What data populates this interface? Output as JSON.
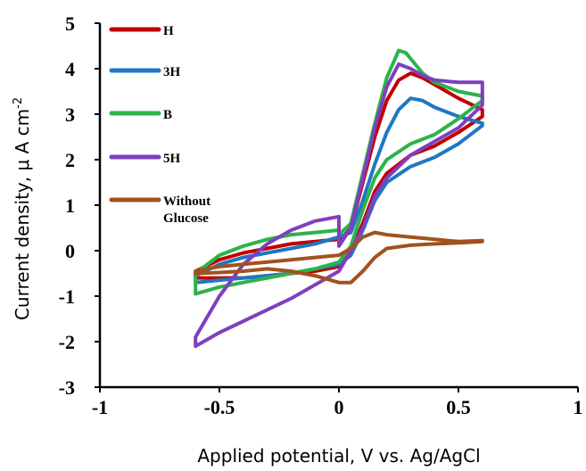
{
  "chart_data": {
    "type": "line",
    "xlabel": "Applied potential, V vs. Ag/AgCl",
    "ylabel_main": "Current density, μ A cm",
    "ylabel_sup": "-2",
    "xlim": [
      -1,
      1
    ],
    "ylim": [
      -3,
      5
    ],
    "x_ticks": [
      -1,
      -0.5,
      0,
      0.5,
      1
    ],
    "x_tick_labels": [
      "-1",
      "-0.5",
      "0",
      "0.5",
      "1"
    ],
    "y_ticks": [
      -3,
      -2,
      -1,
      0,
      1,
      2,
      3,
      4,
      5
    ],
    "y_tick_labels": [
      "-3",
      "-2",
      "-1",
      "0",
      "1",
      "2",
      "3",
      "4",
      "5"
    ],
    "grid": false,
    "legend_position": "top-left",
    "series": [
      {
        "name": "H",
        "color": "#c00000",
        "legend_lines": [
          "H"
        ],
        "points": [
          [
            0,
            0.2
          ],
          [
            0.05,
            0.5
          ],
          [
            0.1,
            1.5
          ],
          [
            0.15,
            2.5
          ],
          [
            0.2,
            3.3
          ],
          [
            0.25,
            3.75
          ],
          [
            0.3,
            3.9
          ],
          [
            0.35,
            3.8
          ],
          [
            0.4,
            3.65
          ],
          [
            0.5,
            3.35
          ],
          [
            0.6,
            3.1
          ],
          [
            0.6,
            2.95
          ],
          [
            0.5,
            2.6
          ],
          [
            0.4,
            2.3
          ],
          [
            0.3,
            2.1
          ],
          [
            0.2,
            1.7
          ],
          [
            0.15,
            1.3
          ],
          [
            0.1,
            0.6
          ],
          [
            0.05,
            0
          ],
          [
            0,
            -0.35
          ],
          [
            -0.1,
            -0.45
          ],
          [
            -0.2,
            -0.5
          ],
          [
            -0.3,
            -0.55
          ],
          [
            -0.4,
            -0.6
          ],
          [
            -0.5,
            -0.6
          ],
          [
            -0.6,
            -0.6
          ],
          [
            -0.6,
            -0.45
          ],
          [
            -0.5,
            -0.2
          ],
          [
            -0.4,
            -0.05
          ],
          [
            -0.3,
            0.05
          ],
          [
            -0.2,
            0.15
          ],
          [
            -0.1,
            0.2
          ],
          [
            0,
            0.25
          ]
        ]
      },
      {
        "name": "3H",
        "color": "#1f77c4",
        "legend_lines": [
          "3H"
        ],
        "points": [
          [
            0,
            0.3
          ],
          [
            0.05,
            0.4
          ],
          [
            0.1,
            1.1
          ],
          [
            0.15,
            1.9
          ],
          [
            0.2,
            2.6
          ],
          [
            0.25,
            3.1
          ],
          [
            0.3,
            3.35
          ],
          [
            0.35,
            3.3
          ],
          [
            0.4,
            3.15
          ],
          [
            0.5,
            2.95
          ],
          [
            0.6,
            2.8
          ],
          [
            0.6,
            2.75
          ],
          [
            0.5,
            2.35
          ],
          [
            0.4,
            2.05
          ],
          [
            0.3,
            1.85
          ],
          [
            0.2,
            1.5
          ],
          [
            0.15,
            1.1
          ],
          [
            0.1,
            0.45
          ],
          [
            0.05,
            -0.1
          ],
          [
            0,
            -0.3
          ],
          [
            -0.1,
            -0.4
          ],
          [
            -0.2,
            -0.5
          ],
          [
            -0.3,
            -0.55
          ],
          [
            -0.4,
            -0.6
          ],
          [
            -0.5,
            -0.65
          ],
          [
            -0.6,
            -0.7
          ],
          [
            -0.6,
            -0.55
          ],
          [
            -0.5,
            -0.3
          ],
          [
            -0.4,
            -0.15
          ],
          [
            -0.3,
            -0.05
          ],
          [
            -0.2,
            0.05
          ],
          [
            -0.1,
            0.15
          ],
          [
            0,
            0.3
          ]
        ]
      },
      {
        "name": "B",
        "color": "#2db34a",
        "legend_lines": [
          "B"
        ],
        "points": [
          [
            0,
            0.35
          ],
          [
            0.05,
            0.6
          ],
          [
            0.1,
            1.7
          ],
          [
            0.15,
            2.8
          ],
          [
            0.2,
            3.8
          ],
          [
            0.25,
            4.4
          ],
          [
            0.28,
            4.35
          ],
          [
            0.35,
            3.9
          ],
          [
            0.4,
            3.7
          ],
          [
            0.5,
            3.5
          ],
          [
            0.6,
            3.4
          ],
          [
            0.6,
            3.3
          ],
          [
            0.5,
            2.9
          ],
          [
            0.4,
            2.55
          ],
          [
            0.3,
            2.35
          ],
          [
            0.2,
            2.0
          ],
          [
            0.15,
            1.6
          ],
          [
            0.1,
            0.9
          ],
          [
            0.05,
            0.1
          ],
          [
            0,
            -0.25
          ],
          [
            -0.1,
            -0.4
          ],
          [
            -0.2,
            -0.5
          ],
          [
            -0.3,
            -0.6
          ],
          [
            -0.4,
            -0.7
          ],
          [
            -0.5,
            -0.8
          ],
          [
            -0.6,
            -0.95
          ],
          [
            -0.6,
            -0.5
          ],
          [
            -0.5,
            -0.1
          ],
          [
            -0.4,
            0.1
          ],
          [
            -0.3,
            0.25
          ],
          [
            -0.2,
            0.35
          ],
          [
            -0.1,
            0.4
          ],
          [
            0,
            0.45
          ]
        ]
      },
      {
        "name": "5H",
        "color": "#7f3fbf",
        "legend_lines": [
          "5H"
        ],
        "points": [
          [
            0,
            0.1
          ],
          [
            0.05,
            0.5
          ],
          [
            0.1,
            1.6
          ],
          [
            0.15,
            2.7
          ],
          [
            0.2,
            3.6
          ],
          [
            0.25,
            4.1
          ],
          [
            0.3,
            4.0
          ],
          [
            0.35,
            3.85
          ],
          [
            0.4,
            3.75
          ],
          [
            0.5,
            3.7
          ],
          [
            0.6,
            3.7
          ],
          [
            0.6,
            3.2
          ],
          [
            0.5,
            2.7
          ],
          [
            0.4,
            2.4
          ],
          [
            0.3,
            2.1
          ],
          [
            0.2,
            1.6
          ],
          [
            0.15,
            1.2
          ],
          [
            0.1,
            0.5
          ],
          [
            0.05,
            0
          ],
          [
            0,
            -0.45
          ],
          [
            -0.1,
            -0.75
          ],
          [
            -0.2,
            -1.05
          ],
          [
            -0.3,
            -1.3
          ],
          [
            -0.4,
            -1.55
          ],
          [
            -0.5,
            -1.8
          ],
          [
            -0.6,
            -2.1
          ],
          [
            -0.6,
            -1.9
          ],
          [
            -0.5,
            -1.0
          ],
          [
            -0.4,
            -0.3
          ],
          [
            -0.3,
            0.15
          ],
          [
            -0.2,
            0.45
          ],
          [
            -0.1,
            0.65
          ],
          [
            0,
            0.75
          ]
        ]
      },
      {
        "name": "Without Glucose",
        "color": "#a0521e",
        "legend_lines": [
          "Without",
          "Glucose"
        ],
        "points": [
          [
            0,
            -0.1
          ],
          [
            0.05,
            0.05
          ],
          [
            0.1,
            0.3
          ],
          [
            0.15,
            0.4
          ],
          [
            0.2,
            0.35
          ],
          [
            0.3,
            0.3
          ],
          [
            0.4,
            0.25
          ],
          [
            0.5,
            0.2
          ],
          [
            0.6,
            0.22
          ],
          [
            0.6,
            0.2
          ],
          [
            0.5,
            0.17
          ],
          [
            0.4,
            0.15
          ],
          [
            0.3,
            0.12
          ],
          [
            0.2,
            0.05
          ],
          [
            0.15,
            -0.15
          ],
          [
            0.1,
            -0.45
          ],
          [
            0.05,
            -0.7
          ],
          [
            0,
            -0.7
          ],
          [
            -0.1,
            -0.55
          ],
          [
            -0.2,
            -0.45
          ],
          [
            -0.3,
            -0.4
          ],
          [
            -0.4,
            -0.45
          ],
          [
            -0.5,
            -0.48
          ],
          [
            -0.6,
            -0.5
          ],
          [
            -0.6,
            -0.45
          ],
          [
            -0.5,
            -0.35
          ],
          [
            -0.4,
            -0.3
          ],
          [
            -0.3,
            -0.25
          ],
          [
            -0.2,
            -0.2
          ],
          [
            -0.1,
            -0.15
          ],
          [
            0,
            -0.1
          ]
        ]
      }
    ]
  }
}
